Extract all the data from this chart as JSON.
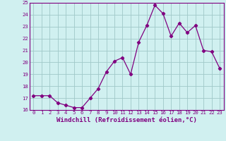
{
  "x": [
    0,
    1,
    2,
    3,
    4,
    5,
    6,
    7,
    8,
    9,
    10,
    11,
    12,
    13,
    14,
    15,
    16,
    17,
    18,
    19,
    20,
    21,
    22,
    23
  ],
  "y": [
    17.2,
    17.2,
    17.2,
    16.6,
    16.4,
    16.2,
    16.2,
    17.0,
    17.8,
    19.2,
    20.1,
    20.4,
    19.0,
    21.7,
    23.1,
    24.8,
    24.1,
    22.2,
    23.3,
    22.5,
    23.1,
    21.0,
    20.9,
    19.5
  ],
  "line_color": "#800080",
  "marker": "D",
  "marker_size": 2.2,
  "bg_color": "#d0f0f0",
  "grid_color": "#a0c8c8",
  "xlabel": "Windchill (Refroidissement éolien,°C)",
  "ylim": [
    16,
    25
  ],
  "xlim": [
    -0.5,
    23.5
  ],
  "yticks": [
    16,
    17,
    18,
    19,
    20,
    21,
    22,
    23,
    24,
    25
  ],
  "xticks": [
    0,
    1,
    2,
    3,
    4,
    5,
    6,
    7,
    8,
    9,
    10,
    11,
    12,
    13,
    14,
    15,
    16,
    17,
    18,
    19,
    20,
    21,
    22,
    23
  ],
  "tick_fontsize": 5.2,
  "label_fontsize": 6.5
}
